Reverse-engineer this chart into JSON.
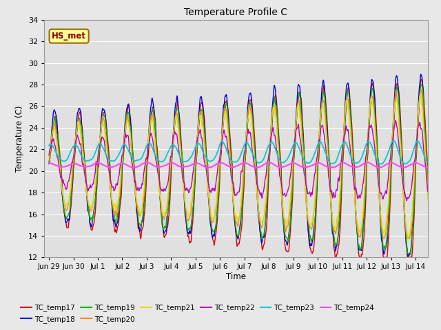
{
  "title": "Temperature Profile C",
  "xlabel": "Time",
  "ylabel": "Temperature (C)",
  "ylim": [
    12,
    34
  ],
  "background_color": "#e8e8e8",
  "plot_bg_color": "#e0e0e0",
  "annotation_text": "HS_met",
  "annotation_color": "#8b0000",
  "annotation_bg": "#ffff99",
  "annotation_border": "#996600",
  "series_colors": {
    "TC_temp17": "#dd0000",
    "TC_temp18": "#0000dd",
    "TC_temp19": "#00bb00",
    "TC_temp20": "#ff8800",
    "TC_temp21": "#dddd00",
    "TC_temp22": "#bb00bb",
    "TC_temp23": "#00cccc",
    "TC_temp24": "#ff44ff"
  },
  "legend_order": [
    "TC_temp17",
    "TC_temp18",
    "TC_temp19",
    "TC_temp20",
    "TC_temp21",
    "TC_temp22",
    "TC_temp23",
    "TC_temp24"
  ],
  "x_tick_labels": [
    "Jun 29",
    "Jun 30",
    "Jul 1",
    "Jul 2",
    "Jul 3",
    "Jul 4",
    "Jul 5",
    "Jul 6",
    "Jul 7",
    "Jul 8",
    "Jul 9",
    "Jul 10",
    "Jul 11",
    "Jul 12",
    "Jul 13",
    "Jul 14"
  ],
  "x_tick_positions": [
    0,
    1,
    2,
    3,
    4,
    5,
    6,
    7,
    8,
    9,
    10,
    11,
    12,
    13,
    14,
    15
  ],
  "yticks": [
    12,
    14,
    16,
    18,
    20,
    22,
    24,
    26,
    28,
    30,
    32,
    34
  ]
}
